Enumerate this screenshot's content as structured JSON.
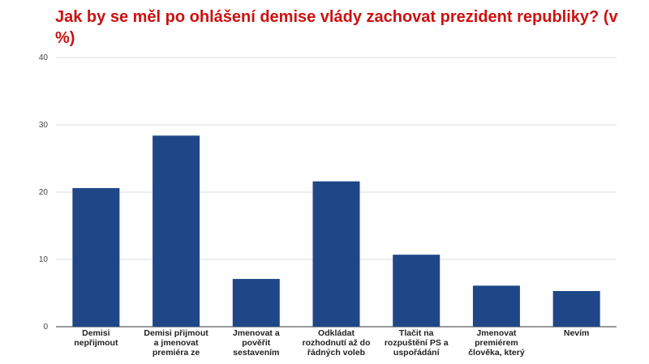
{
  "chart_data": {
    "type": "bar",
    "title": "Jak by se měl po ohlášení demise vlády zachovat prezident republiky? (v %)",
    "categories": [
      "Demisi nepřijmout",
      "Demisi přijmout a jmenovat premiéra ze",
      "Jmenovat a pověřit sestavením",
      "Odkládat rozhodnutí až do řádných voleb",
      "Tlačit na rozpuštění PS a uspořádání",
      "Jmenovat premiérem člověka, který",
      "Nevím"
    ],
    "values": [
      20.6,
      28.4,
      7.1,
      21.6,
      10.7,
      6.1,
      5.3
    ],
    "color": "#1f4788",
    "ylim": [
      0,
      40
    ],
    "yticks": [
      0,
      10,
      20,
      30,
      40
    ],
    "grid": true
  }
}
